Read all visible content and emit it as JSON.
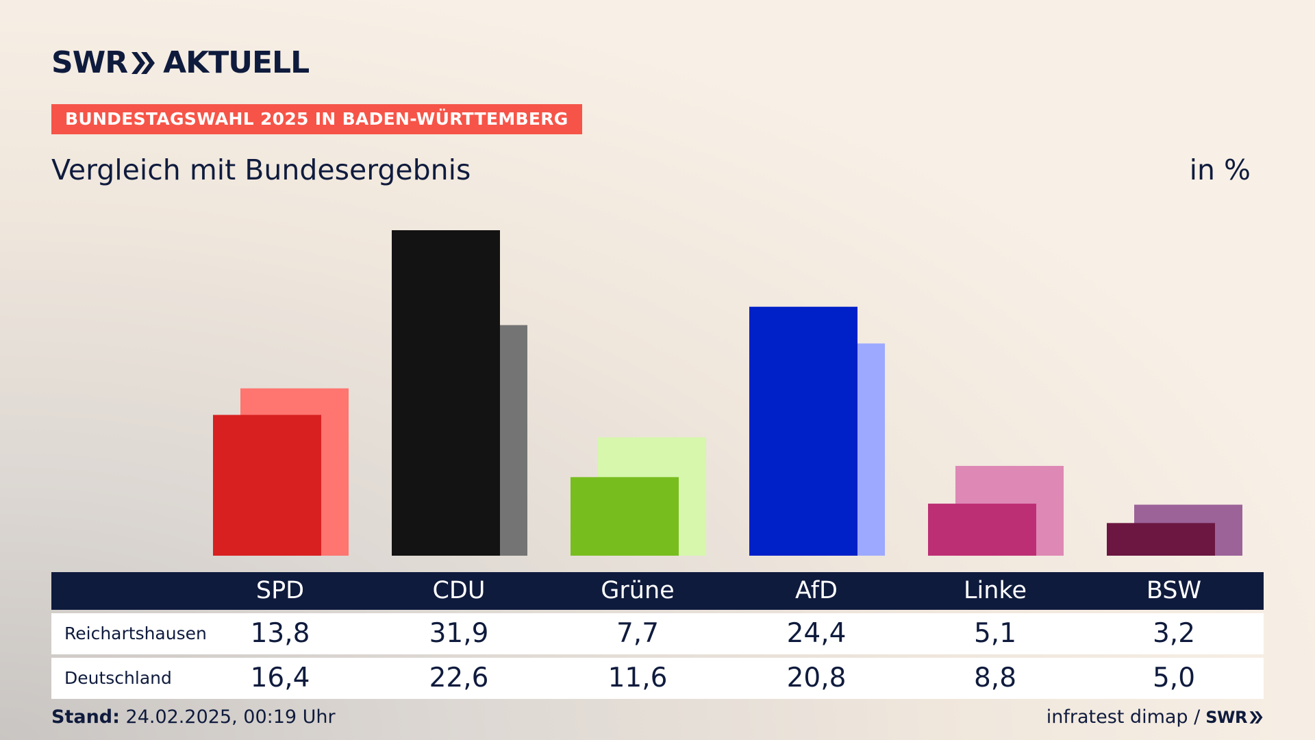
{
  "header": {
    "logo_left": "SWR",
    "logo_right": "AKTUELL",
    "badge": "BUNDESTAGSWAHL 2025 IN BADEN-WÜRTTEMBERG",
    "subtitle": "Vergleich mit Bundesergebnis",
    "unit": "in %"
  },
  "colors": {
    "text": "#0f1b3d",
    "badge": "#f65448",
    "table_header": "#0f1b3d"
  },
  "chart_data": {
    "type": "bar",
    "categories": [
      "SPD",
      "CDU",
      "Grüne",
      "AfD",
      "Linke",
      "BSW"
    ],
    "series": [
      {
        "name": "Reichartshausen",
        "values": [
          13.8,
          31.9,
          7.7,
          24.4,
          5.1,
          3.2
        ],
        "colors": [
          "#d82020",
          "#131313",
          "#78bd1e",
          "#0020c8",
          "#bd2f74",
          "#6b1741"
        ]
      },
      {
        "name": "Deutschland",
        "values": [
          16.4,
          22.6,
          11.6,
          20.8,
          8.8,
          5.0
        ],
        "colors": [
          "#ff7570",
          "#747474",
          "#d6f7ac",
          "#9da9ff",
          "#de88b5",
          "#9c6399"
        ]
      }
    ],
    "ylim": [
      0,
      32
    ],
    "grid": false,
    "legend": "table-bottom"
  },
  "table": {
    "headers": [
      "SPD",
      "CDU",
      "Grüne",
      "AfD",
      "Linke",
      "BSW"
    ],
    "rows": [
      {
        "label": "Reichartshausen",
        "values": [
          "13,8",
          "31,9",
          "7,7",
          "24,4",
          "5,1",
          "3,2"
        ]
      },
      {
        "label": "Deutschland",
        "values": [
          "16,4",
          "22,6",
          "11,6",
          "20,8",
          "8,8",
          "5,0"
        ]
      }
    ]
  },
  "footer": {
    "stand_label": "Stand:",
    "stand_value": "24.02.2025, 00:19 Uhr",
    "source": "infratest dimap /",
    "source_logo": "SWR"
  }
}
